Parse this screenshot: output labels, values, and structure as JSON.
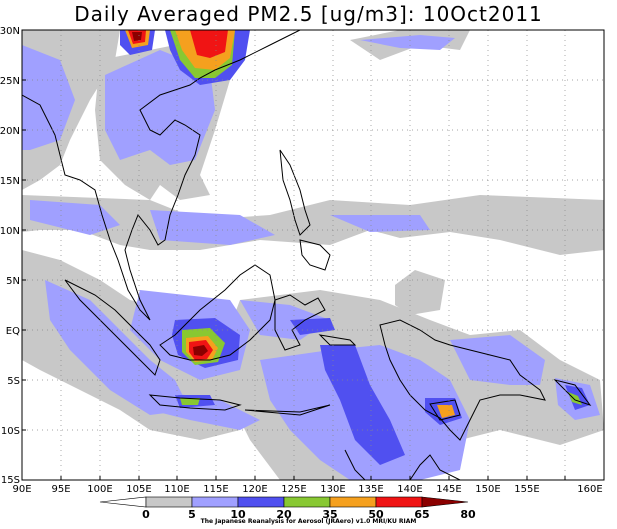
{
  "title": "Daily Averaged PM2.5 [ug/m3]: 10Oct2011",
  "lat_labels": [
    "30N",
    "25N",
    "20N",
    "15N",
    "10N",
    "5N",
    "EQ",
    "5S",
    "10S",
    "15S"
  ],
  "lon_labels": [
    "90E",
    "95E",
    "100E",
    "105E",
    "110E",
    "115E",
    "120E",
    "125E",
    "130E",
    "135E",
    "140E",
    "145E",
    "150E",
    "155E",
    "160E"
  ],
  "colorbar": {
    "levels": [
      "0",
      "5",
      "10",
      "20",
      "35",
      "50",
      "65",
      "80"
    ],
    "colors": [
      "#ffffff",
      "#c8c8c8",
      "#a0a0ff",
      "#5050f0",
      "#88c832",
      "#f5a01e",
      "#f01414",
      "#8b0000"
    ]
  },
  "credit": "The Japanese Reanalysis for Aerosol (JRAero) v1.0 MRI/KU RIAM"
}
